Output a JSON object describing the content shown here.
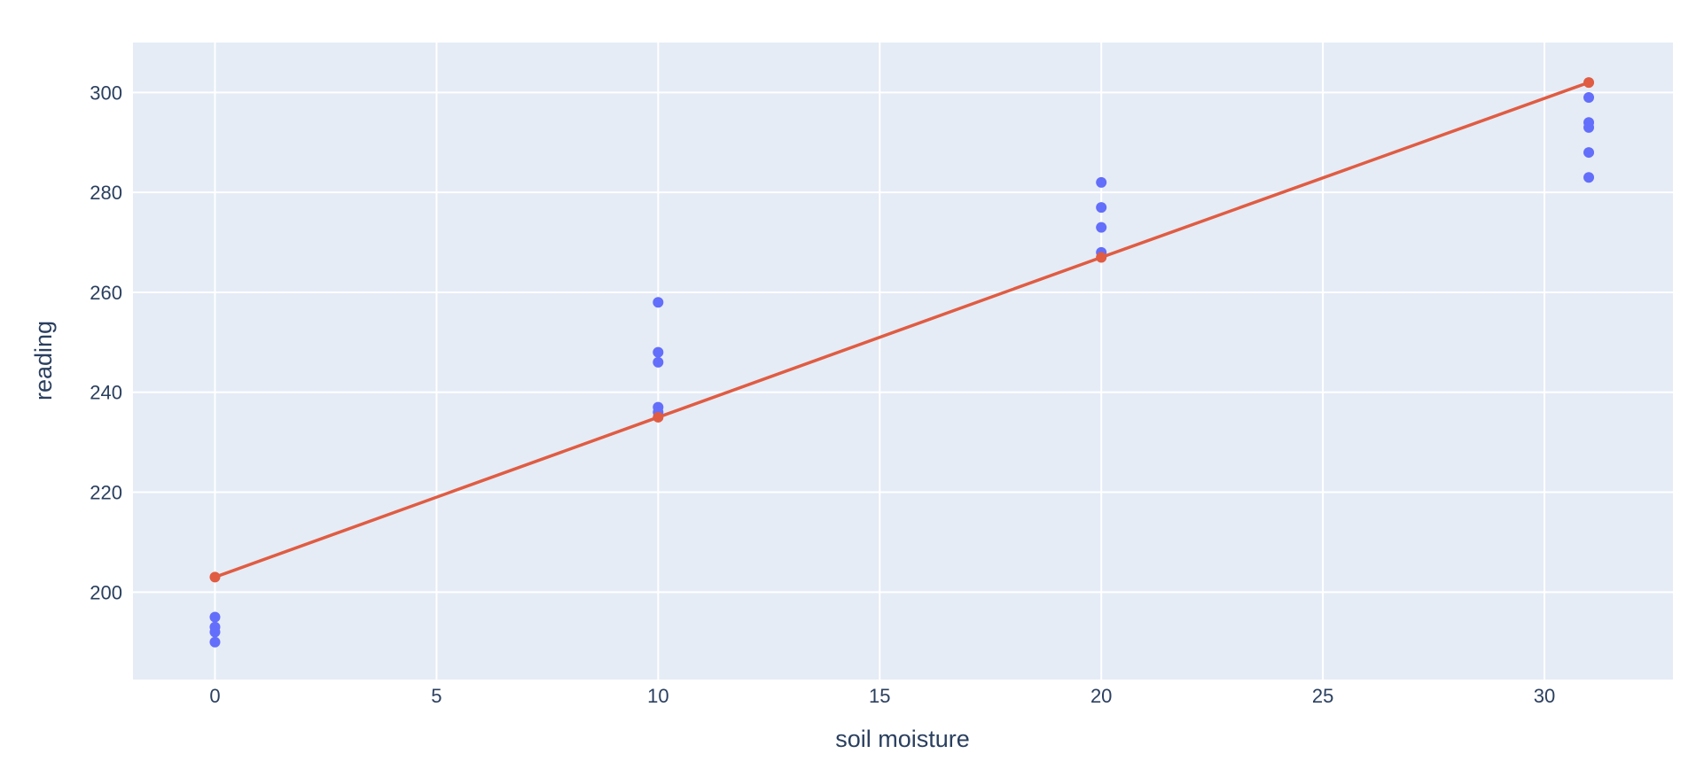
{
  "chart_data": {
    "type": "scatter",
    "title": "",
    "xlabel": "soil moisture",
    "ylabel": "reading",
    "xlim": [
      -1.85,
      32.9
    ],
    "ylim": [
      182.5,
      310
    ],
    "x_ticks": [
      0,
      5,
      10,
      15,
      20,
      25,
      30
    ],
    "y_ticks": [
      200,
      220,
      240,
      260,
      280,
      300
    ],
    "grid": true,
    "legend": "none",
    "plot_background": "#e5ecf6",
    "series": [
      {
        "mode": "markers",
        "color": "#636efa",
        "points": [
          {
            "x": 0,
            "y": 195
          },
          {
            "x": 0,
            "y": 193
          },
          {
            "x": 0,
            "y": 192
          },
          {
            "x": 0,
            "y": 190
          },
          {
            "x": 10,
            "y": 258
          },
          {
            "x": 10,
            "y": 248
          },
          {
            "x": 10,
            "y": 246
          },
          {
            "x": 10,
            "y": 237
          },
          {
            "x": 10,
            "y": 236
          },
          {
            "x": 20,
            "y": 282
          },
          {
            "x": 20,
            "y": 277
          },
          {
            "x": 20,
            "y": 273
          },
          {
            "x": 20,
            "y": 268
          },
          {
            "x": 31,
            "y": 299
          },
          {
            "x": 31,
            "y": 294
          },
          {
            "x": 31,
            "y": 293
          },
          {
            "x": 31,
            "y": 288
          },
          {
            "x": 31,
            "y": 283
          }
        ]
      },
      {
        "mode": "lines+markers",
        "color": "#e05c42",
        "points": [
          {
            "x": 0,
            "y": 203
          },
          {
            "x": 10,
            "y": 235
          },
          {
            "x": 20,
            "y": 267
          },
          {
            "x": 31,
            "y": 302
          }
        ]
      }
    ]
  }
}
